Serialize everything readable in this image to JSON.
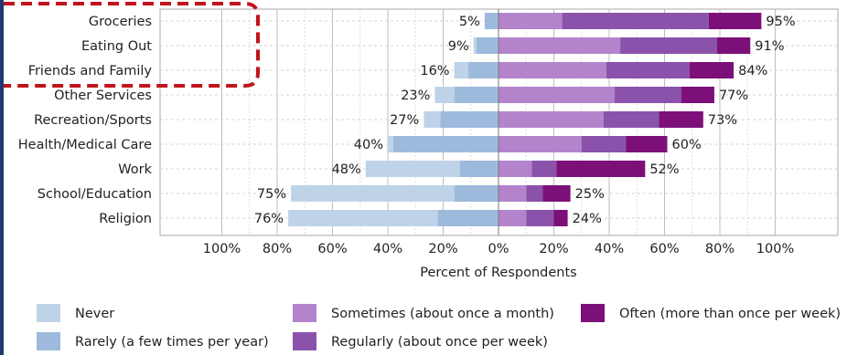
{
  "chart_data": {
    "type": "bar",
    "orientation": "horizontal",
    "stacked": "diverging",
    "categories": [
      "Groceries",
      "Eating Out",
      "Friends and Family",
      "Other Services",
      "Recreation/Sports",
      "Health/Medical Care",
      "Work",
      "School/Education",
      "Religion"
    ],
    "series": [
      {
        "name": "Never",
        "side": "left",
        "color": "#bfd3e8",
        "values": [
          0,
          1,
          5,
          7,
          6,
          2,
          34,
          59,
          54
        ]
      },
      {
        "name": "Rarely (a few times per year)",
        "side": "left",
        "color": "#9dbadc",
        "values": [
          5,
          8,
          11,
          16,
          21,
          38,
          14,
          16,
          22
        ]
      },
      {
        "name": "Sometimes (about once a month)",
        "side": "right",
        "color": "#b384cc",
        "values": [
          23,
          44,
          39,
          42,
          38,
          30,
          12,
          10,
          10
        ]
      },
      {
        "name": "Regularly (about once per week)",
        "side": "right",
        "color": "#8b52ab",
        "values": [
          53,
          35,
          30,
          24,
          20,
          16,
          9,
          6,
          10
        ]
      },
      {
        "name": "Often (more than once per week)",
        "side": "right",
        "color": "#7c1078",
        "values": [
          19,
          12,
          16,
          12,
          16,
          15,
          32,
          10,
          5
        ]
      }
    ],
    "left_totals": [
      "5%",
      "9%",
      "16%",
      "23%",
      "27%",
      "40%",
      "48%",
      "75%",
      "76%"
    ],
    "right_totals": [
      "95%",
      "91%",
      "84%",
      "77%",
      "73%",
      "60%",
      "52%",
      "25%",
      "24%"
    ],
    "xticks": [
      "100%",
      "80%",
      "60%",
      "40%",
      "20%",
      "0%",
      "20%",
      "40%",
      "60%",
      "80%",
      "100%"
    ],
    "xlabel": "Percent of Respondents",
    "ylabel": "",
    "title": "",
    "xlim": [
      -100,
      100
    ],
    "grid": true,
    "legend_position": "bottom",
    "highlight": {
      "categories": [
        "Groceries",
        "Eating Out",
        "Friends and Family"
      ],
      "color": "#c0151c",
      "style": "dashed"
    }
  }
}
